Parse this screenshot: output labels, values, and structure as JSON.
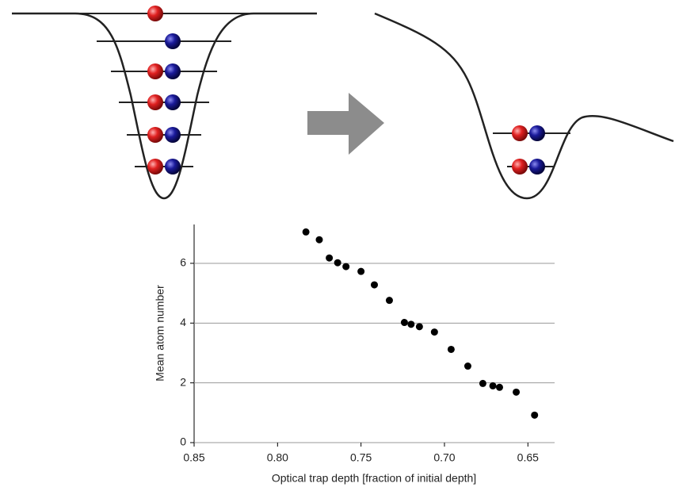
{
  "chart_data": {
    "type": "scatter",
    "xlabel": "Optical trap depth [fraction of initial depth]",
    "ylabel": "Mean atom number",
    "x": [
      0.783,
      0.775,
      0.769,
      0.764,
      0.759,
      0.75,
      0.742,
      0.733,
      0.724,
      0.72,
      0.715,
      0.706,
      0.696,
      0.686,
      0.677,
      0.671,
      0.667,
      0.657,
      0.646
    ],
    "values": [
      7.05,
      6.79,
      6.18,
      6.02,
      5.89,
      5.73,
      5.28,
      4.76,
      4.02,
      3.96,
      3.88,
      3.7,
      3.12,
      2.56,
      1.98,
      1.9,
      1.85,
      1.69,
      0.92
    ],
    "color": "#000000",
    "xlim": [
      0.85,
      0.634
    ],
    "ylim": [
      0,
      7.3
    ],
    "xticks": [
      0.85,
      {
        "value": 0.8,
        "label": "0.80"
      },
      0.75,
      {
        "value": 0.7,
        "label": "0.70"
      },
      0.65
    ],
    "yticks": [
      0,
      2,
      4,
      6
    ],
    "grid": true
  }
}
